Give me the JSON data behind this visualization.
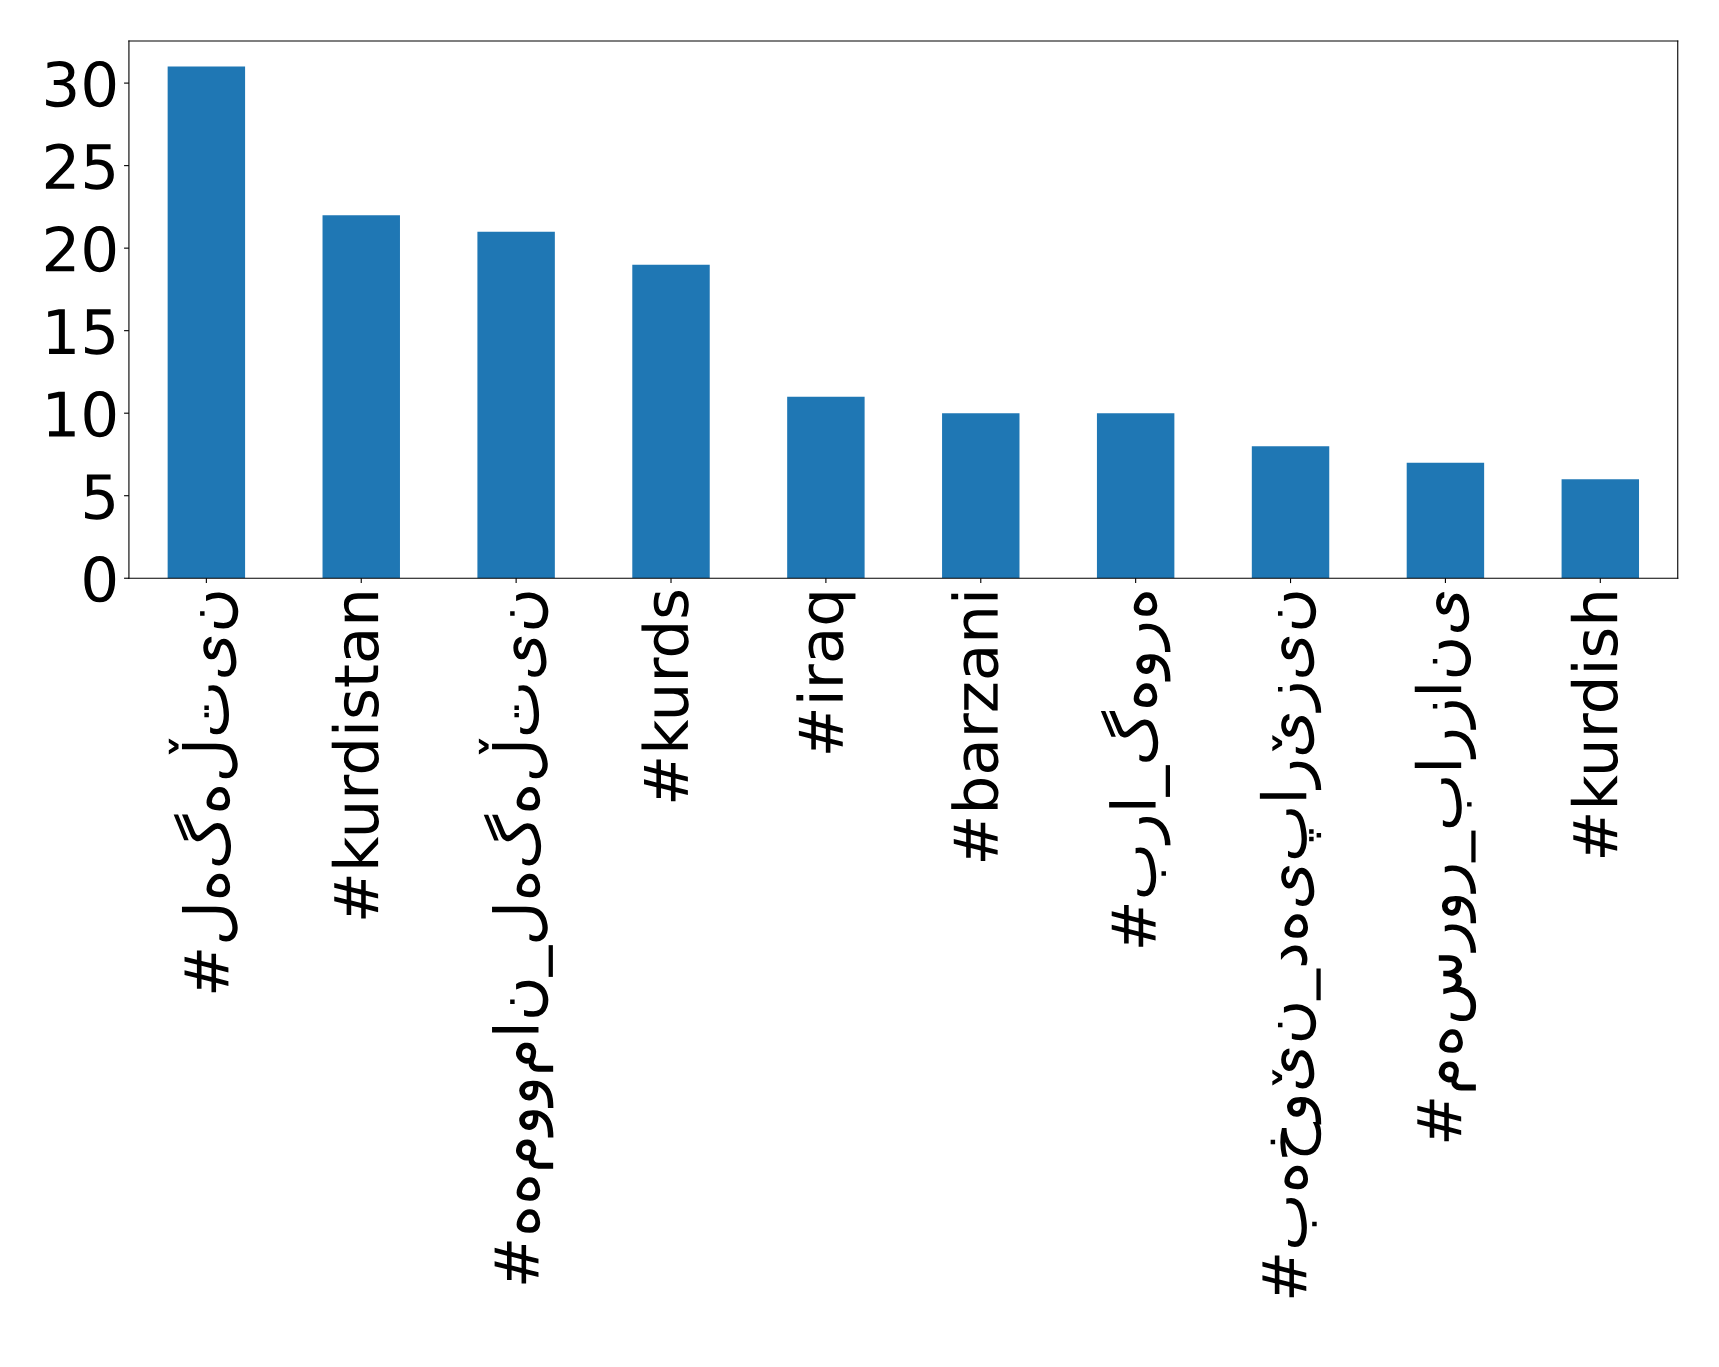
{
  "chart_data": {
    "type": "bar",
    "categories": [
      "#لەگەڵتین",
      "#kurdistan",
      "#هەموومان_لەگەڵتین",
      "#kurds",
      "#iraq",
      "#barzani",
      "#برا_گەورە",
      "#بەخوێن_دەیپارێزین",
      "#مەسرور_بارزانی",
      "#kurdish"
    ],
    "values": [
      31,
      22,
      21,
      19,
      11,
      10,
      10,
      8,
      7,
      6
    ],
    "color": "#1f77b4",
    "ylim": [
      0,
      32.55
    ],
    "yticks": [
      0,
      5,
      10,
      15,
      20,
      25,
      30
    ],
    "grid": false
  }
}
